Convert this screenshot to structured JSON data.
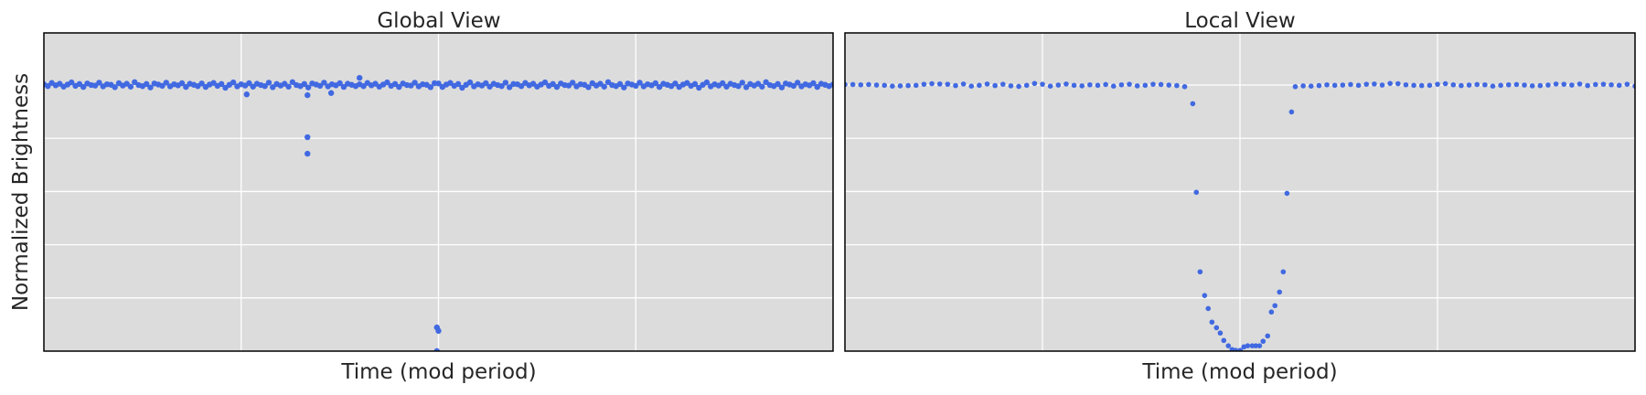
{
  "colors": {
    "points": "#4169e1",
    "plot_background": "#dcdcdc",
    "grid": "#ffffff",
    "frame": "#000000"
  },
  "ylabel": "Normalized Brightness",
  "chart_data": [
    {
      "type": "scatter",
      "title": "Global View",
      "xlabel": "Time (mod period)",
      "xlim": [
        -0.5,
        0.5
      ],
      "ylim": [
        0,
        1.196
      ],
      "grid": true,
      "tick_labels_shown": false,
      "x_gridlines": [
        -0.25,
        0,
        0.25
      ],
      "y_gridlines": [
        0.2,
        0.4,
        0.6,
        0.8,
        1.0
      ],
      "baseline": {
        "x_start": -0.5,
        "x_step": 0.005,
        "y": [
          1.003,
          0.996,
          1.008,
          0.999,
          1.005,
          0.994,
          1.002,
          1.01,
          0.997,
          1.004,
          0.993,
          1.006,
          1.0,
          0.998,
          1.009,
          0.995,
          1.003,
          1.001,
          0.992,
          1.007,
          0.998,
          1.005,
          0.994,
          1.011,
          1.0,
          0.996,
          1.004,
          0.991,
          1.006,
          1.002,
          0.997,
          1.009,
          0.995,
          1.003,
          0.999,
          1.007,
          0.993,
          1.005,
          1.001,
          0.996,
          1.006,
          0.993,
          1.002,
          1.008,
          0.997,
          1.004,
          0.99,
          1.001,
          1.01,
          0.995,
          1.003,
          0.998,
          1.007,
          0.994,
          1.005,
          1.0,
          0.996,
          1.009,
          0.992,
          1.004,
          0.998,
          1.005,
          0.994,
          1.011,
          1.0,
          0.996,
          1.004,
          0.991,
          1.006,
          1.002,
          0.997,
          1.009,
          0.995,
          1.003,
          0.999,
          1.007,
          0.993,
          1.005,
          1.001,
          0.996,
          1.003,
          0.996,
          1.008,
          0.999,
          1.005,
          0.994,
          1.002,
          1.01,
          0.997,
          1.004,
          0.993,
          1.006,
          1.0,
          0.998,
          1.009,
          0.995,
          1.003,
          1.001,
          0.992,
          1.007,
          1.006,
          0.993,
          1.002,
          1.008,
          0.997,
          1.004,
          0.99,
          1.001,
          1.01,
          0.995,
          1.003,
          0.998,
          1.007,
          0.994,
          1.005,
          1.0,
          0.996,
          1.009,
          0.992,
          1.004,
          1.003,
          0.996,
          1.008,
          0.999,
          1.005,
          0.994,
          1.002,
          1.01,
          0.997,
          1.004,
          0.993,
          1.006,
          1.0,
          0.998,
          1.009,
          0.995,
          1.003,
          1.001,
          0.992,
          1.007,
          0.998,
          1.005,
          0.994,
          1.011,
          1.0,
          0.996,
          1.004,
          0.991,
          1.006,
          1.002,
          0.997,
          1.009,
          0.995,
          1.003,
          0.999,
          1.007,
          0.993,
          1.005,
          1.001,
          0.996,
          1.006,
          0.993,
          1.002,
          1.008,
          0.997,
          1.004,
          0.99,
          1.001,
          1.01,
          0.995,
          1.003,
          0.998,
          1.007,
          0.994,
          1.005,
          1.0,
          0.996,
          1.009,
          0.992,
          1.004,
          0.998,
          1.005,
          0.994,
          1.011,
          1.0,
          0.996,
          1.004,
          0.991,
          1.006,
          1.002,
          0.997,
          1.009,
          0.995,
          1.003,
          0.999,
          1.007,
          0.993,
          1.005,
          1.001,
          0.996,
          1.002
        ]
      },
      "points": [
        [
          -0.243,
          0.965
        ],
        [
          -0.136,
          0.97
        ],
        [
          -0.1,
          1.027
        ],
        [
          -0.166,
          0.962
        ],
        [
          -0.166,
          0.804
        ],
        [
          -0.166,
          0.742
        ],
        [
          -0.002,
          0.089
        ],
        [
          0.0,
          0.076
        ],
        [
          -0.002,
          0.0
        ]
      ]
    },
    {
      "type": "scatter",
      "title": "Local View",
      "xlabel": "Time (mod period)",
      "xlim": [
        -2,
        2
      ],
      "ylim": [
        0,
        1.196
      ],
      "grid": true,
      "tick_labels_shown": false,
      "x_gridlines": [
        -1,
        0,
        1
      ],
      "y_gridlines": [
        0.2,
        0.4,
        0.6,
        0.8,
        1.0
      ],
      "baseline_segments": [
        {
          "x_start": -2.0,
          "x_step": 0.04,
          "y": [
            1.002,
            1.002,
            1.001,
            1.002,
            1.0,
            0.999,
            0.996,
            0.997,
            0.998,
            0.999,
            1.003,
            1.005,
            1.004,
            1.003,
            0.998,
            1.004,
            0.996,
            0.999,
            1.004,
            0.998,
            1.003,
            0.997,
            0.995,
            0.999,
            1.006,
            1.003,
            0.996,
            1.0,
            1.004,
            0.999,
            0.997,
            1.001,
            0.999,
            1.002,
            0.996,
            1.001,
            1.003,
            0.997,
            0.999,
            1.003,
            1.002,
            1.0,
            0.998,
            0.994
          ]
        },
        {
          "x_start": 0.28,
          "x_step": 0.04,
          "y": [
            0.994,
            0.997,
            0.996,
            0.998,
            1.001,
            0.999,
            1.0,
            1.002,
            0.999,
            1.003,
            1.004,
            1.0,
            1.006,
            1.005,
            1.001,
            0.999,
            0.998,
            0.999,
            1.003,
            1.005,
            1.001,
            0.998,
            1.0,
            1.002,
            1.001,
            0.996,
            0.999,
            1.001,
            1.002,
            1.0,
            0.997,
            0.998,
            1.0,
            1.004,
            1.003,
            1.0,
            1.004,
            0.998,
            1.002,
            1.003,
            1.001,
            0.999,
            1.003,
            0.996
          ]
        }
      ],
      "points": [
        [
          -0.239,
          0.93
        ],
        [
          -0.221,
          0.597
        ],
        [
          -0.202,
          0.298
        ],
        [
          -0.179,
          0.209
        ],
        [
          -0.161,
          0.16
        ],
        [
          -0.142,
          0.109
        ],
        [
          -0.119,
          0.088
        ],
        [
          -0.1,
          0.068
        ],
        [
          -0.082,
          0.04
        ],
        [
          -0.059,
          0.02
        ],
        [
          -0.04,
          0.006
        ],
        [
          -0.022,
          0.003
        ],
        [
          0.001,
          0.003
        ],
        [
          0.02,
          0.016
        ],
        [
          0.039,
          0.02
        ],
        [
          0.062,
          0.02
        ],
        [
          0.08,
          0.02
        ],
        [
          0.099,
          0.02
        ],
        [
          0.117,
          0.037
        ],
        [
          0.14,
          0.057
        ],
        [
          0.159,
          0.147
        ],
        [
          0.177,
          0.171
        ],
        [
          0.2,
          0.222
        ],
        [
          0.219,
          0.298
        ],
        [
          0.238,
          0.593
        ],
        [
          0.261,
          0.899
        ]
      ]
    }
  ]
}
